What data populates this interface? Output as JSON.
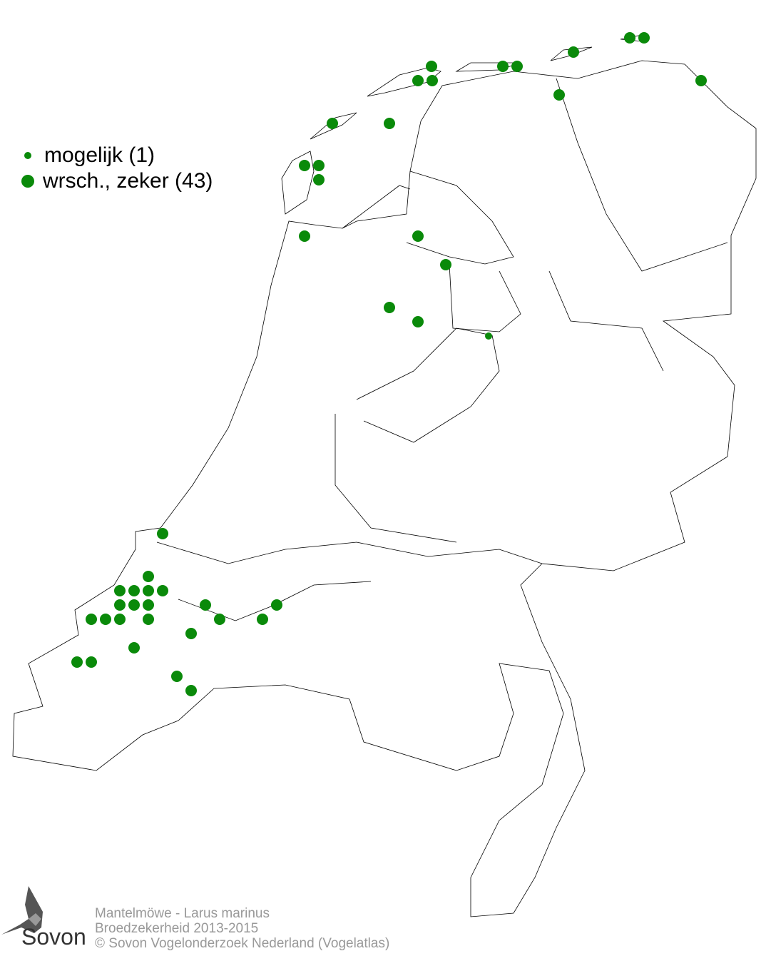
{
  "legend": {
    "items": [
      {
        "label": "mogelijk (1)",
        "size": "small"
      },
      {
        "label": "wrsch., zeker (43)",
        "size": "large"
      }
    ]
  },
  "colors": {
    "dot": "#0a8a0a",
    "outline": "#000000",
    "credits": "#999999"
  },
  "credits": {
    "species": "Mantelmöwe - Larus marinus",
    "subtitle": "Broedzekerheid 2013-2015",
    "copyright": "© Sovon Vogelonderzoek Nederland (Vogelatlas)"
  },
  "logo": {
    "text": "Sovon"
  }
}
